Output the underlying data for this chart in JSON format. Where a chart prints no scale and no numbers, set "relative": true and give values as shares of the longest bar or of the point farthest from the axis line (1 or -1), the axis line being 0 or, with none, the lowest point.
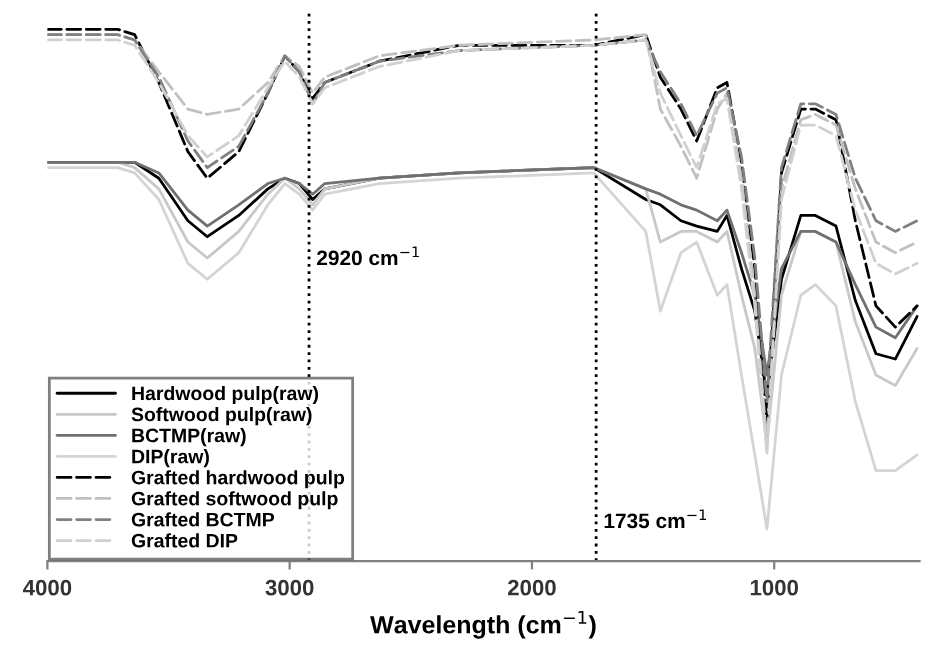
{
  "chart_data": {
    "type": "line",
    "relative": true,
    "xlabel": "Wavelength (cm$^{−1}$)",
    "xlim": [
      4000,
      400
    ],
    "xticks": [
      4000,
      3000,
      2000,
      1000
    ],
    "grid": false,
    "legend": "bottom left",
    "marker": "none",
    "x": [
      4000,
      3710,
      3640,
      3540,
      3420,
      3340,
      3210,
      3090,
      3020,
      2960,
      2905,
      2855,
      2630,
      2300,
      1745,
      1530,
      1470,
      1385,
      1320,
      1235,
      1195,
      1135,
      1080,
      1030,
      970,
      890,
      830,
      745,
      665,
      580,
      500,
      410
    ],
    "ref_lines": [
      {
        "axis": "x",
        "value": 2920,
        "label": "2920 cm$^{−1}$",
        "line_style": "dotted",
        "color": "#000000"
      },
      {
        "axis": "x",
        "value": 1735,
        "label": "1735 cm$^{−1}$",
        "line_style": "dotted",
        "color": "#000000"
      }
    ],
    "series": [
      {
        "name": "Hardwood pulp(raw)",
        "color": "#000000",
        "line_style": "solid",
        "values": [
          0.75,
          0.75,
          0.75,
          0.72,
          0.64,
          0.61,
          0.65,
          0.7,
          0.72,
          0.71,
          0.68,
          0.7,
          0.72,
          0.73,
          0.74,
          0.68,
          0.67,
          0.64,
          0.63,
          0.62,
          0.65,
          0.55,
          0.47,
          0.31,
          0.53,
          0.65,
          0.65,
          0.63,
          0.49,
          0.39,
          0.38,
          0.46
        ]
      },
      {
        "name": "Softwood pulp(raw)",
        "color": "#c8c8c8",
        "line_style": "solid",
        "values": [
          0.75,
          0.75,
          0.74,
          0.7,
          0.6,
          0.57,
          0.62,
          0.69,
          0.72,
          0.7,
          0.67,
          0.7,
          0.72,
          0.73,
          0.74,
          0.7,
          0.6,
          0.62,
          0.62,
          0.6,
          0.62,
          0.5,
          0.4,
          0.22,
          0.5,
          0.62,
          0.62,
          0.6,
          0.45,
          0.35,
          0.33,
          0.4
        ]
      },
      {
        "name": "BCTMP(raw)",
        "color": "#707070",
        "line_style": "solid",
        "values": [
          0.75,
          0.75,
          0.75,
          0.73,
          0.66,
          0.63,
          0.67,
          0.71,
          0.72,
          0.71,
          0.69,
          0.71,
          0.72,
          0.73,
          0.74,
          0.7,
          0.69,
          0.67,
          0.66,
          0.64,
          0.66,
          0.58,
          0.5,
          0.35,
          0.55,
          0.62,
          0.62,
          0.6,
          0.52,
          0.44,
          0.42,
          0.48
        ]
      },
      {
        "name": "DIP(raw)",
        "color": "#d4d4d4",
        "line_style": "solid",
        "values": [
          0.74,
          0.74,
          0.73,
          0.68,
          0.56,
          0.53,
          0.58,
          0.67,
          0.71,
          0.69,
          0.66,
          0.69,
          0.71,
          0.72,
          0.73,
          0.62,
          0.47,
          0.58,
          0.6,
          0.5,
          0.52,
          0.35,
          0.2,
          0.06,
          0.35,
          0.5,
          0.52,
          0.48,
          0.3,
          0.17,
          0.17,
          0.2
        ]
      },
      {
        "name": "Grafted hardwood pulp",
        "color": "#000000",
        "line_style": "dashed",
        "values": [
          1.0,
          1.0,
          0.99,
          0.9,
          0.77,
          0.72,
          0.77,
          0.88,
          0.95,
          0.92,
          0.87,
          0.9,
          0.94,
          0.97,
          0.97,
          0.99,
          0.91,
          0.85,
          0.79,
          0.89,
          0.9,
          0.75,
          0.55,
          0.26,
          0.73,
          0.85,
          0.85,
          0.83,
          0.64,
          0.48,
          0.44,
          0.48
        ]
      },
      {
        "name": "Grafted softwood pulp",
        "color": "#c0c0c0",
        "line_style": "dashed",
        "values": [
          0.99,
          0.99,
          0.98,
          0.92,
          0.85,
          0.84,
          0.85,
          0.9,
          0.95,
          0.93,
          0.88,
          0.91,
          0.95,
          0.97,
          0.98,
          0.99,
          0.85,
          0.78,
          0.72,
          0.85,
          0.88,
          0.72,
          0.5,
          0.22,
          0.7,
          0.83,
          0.84,
          0.82,
          0.7,
          0.6,
          0.58,
          0.6
        ]
      },
      {
        "name": "Grafted BCTMP",
        "color": "#808080",
        "line_style": "dashed",
        "values": [
          0.99,
          0.99,
          0.98,
          0.91,
          0.79,
          0.74,
          0.78,
          0.88,
          0.95,
          0.92,
          0.86,
          0.9,
          0.94,
          0.96,
          0.97,
          0.98,
          0.92,
          0.86,
          0.8,
          0.88,
          0.89,
          0.76,
          0.57,
          0.3,
          0.74,
          0.86,
          0.86,
          0.84,
          0.72,
          0.64,
          0.62,
          0.64
        ]
      },
      {
        "name": "Grafted DIP",
        "color": "#d0d0d0",
        "line_style": "dashed",
        "values": [
          0.98,
          0.98,
          0.97,
          0.9,
          0.8,
          0.76,
          0.8,
          0.89,
          0.94,
          0.91,
          0.86,
          0.89,
          0.93,
          0.96,
          0.97,
          0.98,
          0.88,
          0.8,
          0.74,
          0.86,
          0.87,
          0.7,
          0.48,
          0.2,
          0.68,
          0.82,
          0.82,
          0.8,
          0.66,
          0.56,
          0.54,
          0.56
        ]
      }
    ]
  }
}
